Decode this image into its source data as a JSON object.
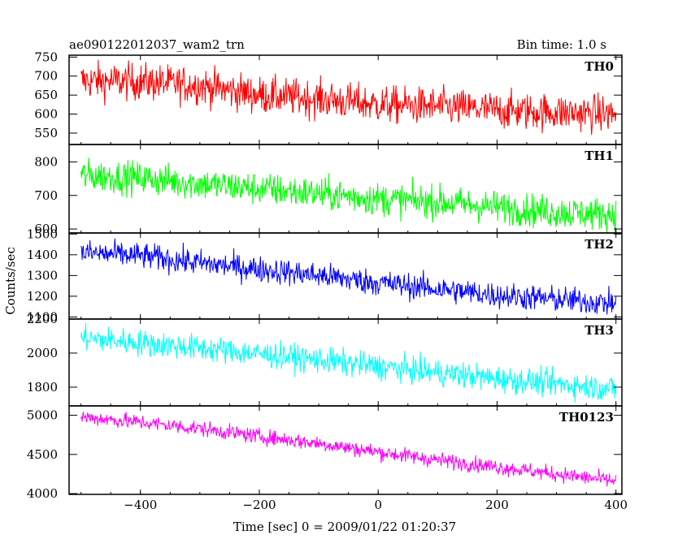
{
  "chart_data": {
    "type": "line",
    "title": "ae090122012037_wam2_trn",
    "subtitle": "Bin time: 1.0 s",
    "xlabel": "Time [sec] 0 = 2009/01/22 01:20:37",
    "ylabel": "Counts/sec",
    "xlim": [
      -520,
      410
    ],
    "xticks": [
      -400,
      -200,
      0,
      200,
      400
    ],
    "x_tick_labels": [
      "−400",
      "−200",
      "0",
      "200",
      "400"
    ],
    "x_range": [
      -500,
      400
    ],
    "grid": false,
    "panels": [
      {
        "name": "TH0",
        "color": "#ff0000",
        "ylim": [
          520,
          755
        ],
        "yticks": [
          550,
          600,
          650,
          700,
          750
        ],
        "y_tick_labels": [
          "550",
          "600",
          "650",
          "700",
          "750"
        ],
        "mean": [
          [
            -500,
            688
          ],
          [
            -400,
            685
          ],
          [
            -300,
            675
          ],
          [
            -200,
            650
          ],
          [
            -100,
            640
          ],
          [
            0,
            625
          ],
          [
            100,
            620
          ],
          [
            200,
            610
          ],
          [
            300,
            605
          ],
          [
            400,
            600
          ]
        ],
        "noise": 35
      },
      {
        "name": "TH1",
        "color": "#00ff00",
        "ylim": [
          588,
          852
        ],
        "yticks": [
          600,
          700,
          800
        ],
        "y_tick_labels": [
          "600",
          "700",
          "800"
        ],
        "mean": [
          [
            -500,
            760
          ],
          [
            -400,
            752
          ],
          [
            -300,
            735
          ],
          [
            -200,
            720
          ],
          [
            -100,
            705
          ],
          [
            0,
            690
          ],
          [
            100,
            680
          ],
          [
            200,
            665
          ],
          [
            300,
            650
          ],
          [
            400,
            643
          ]
        ],
        "noise": 35
      },
      {
        "name": "TH2",
        "color": "#0000ff",
        "ylim": [
          1090,
          1505
        ],
        "yticks": [
          1100,
          1200,
          1300,
          1400,
          1500
        ],
        "y_tick_labels": [
          "1100",
          "1200",
          "1300",
          "1400",
          "1500"
        ],
        "mean": [
          [
            -500,
            1410
          ],
          [
            -400,
            1395
          ],
          [
            -300,
            1360
          ],
          [
            -200,
            1330
          ],
          [
            -100,
            1300
          ],
          [
            0,
            1265
          ],
          [
            100,
            1235
          ],
          [
            200,
            1205
          ],
          [
            300,
            1185
          ],
          [
            400,
            1165
          ]
        ],
        "noise": 45
      },
      {
        "name": "TH3",
        "color": "#00ffff",
        "ylim": [
          1690,
          2200
        ],
        "yticks": [
          1800,
          2000,
          2200
        ],
        "y_tick_labels": [
          "1800",
          "2000",
          "2200"
        ],
        "mean": [
          [
            -500,
            2090
          ],
          [
            -400,
            2060
          ],
          [
            -300,
            2030
          ],
          [
            -200,
            1995
          ],
          [
            -100,
            1960
          ],
          [
            0,
            1920
          ],
          [
            100,
            1885
          ],
          [
            200,
            1850
          ],
          [
            300,
            1820
          ],
          [
            400,
            1790
          ]
        ],
        "noise": 55
      },
      {
        "name": "TH0123",
        "color": "#ff00ff",
        "ylim": [
          3990,
          5120
        ],
        "yticks": [
          4000,
          4500,
          5000
        ],
        "y_tick_labels": [
          "4000",
          "4500",
          "5000"
        ],
        "mean": [
          [
            -500,
            4980
          ],
          [
            -400,
            4910
          ],
          [
            -300,
            4830
          ],
          [
            -200,
            4730
          ],
          [
            -100,
            4640
          ],
          [
            0,
            4530
          ],
          [
            100,
            4430
          ],
          [
            200,
            4340
          ],
          [
            300,
            4250
          ],
          [
            400,
            4160
          ]
        ],
        "noise": 70
      }
    ]
  }
}
